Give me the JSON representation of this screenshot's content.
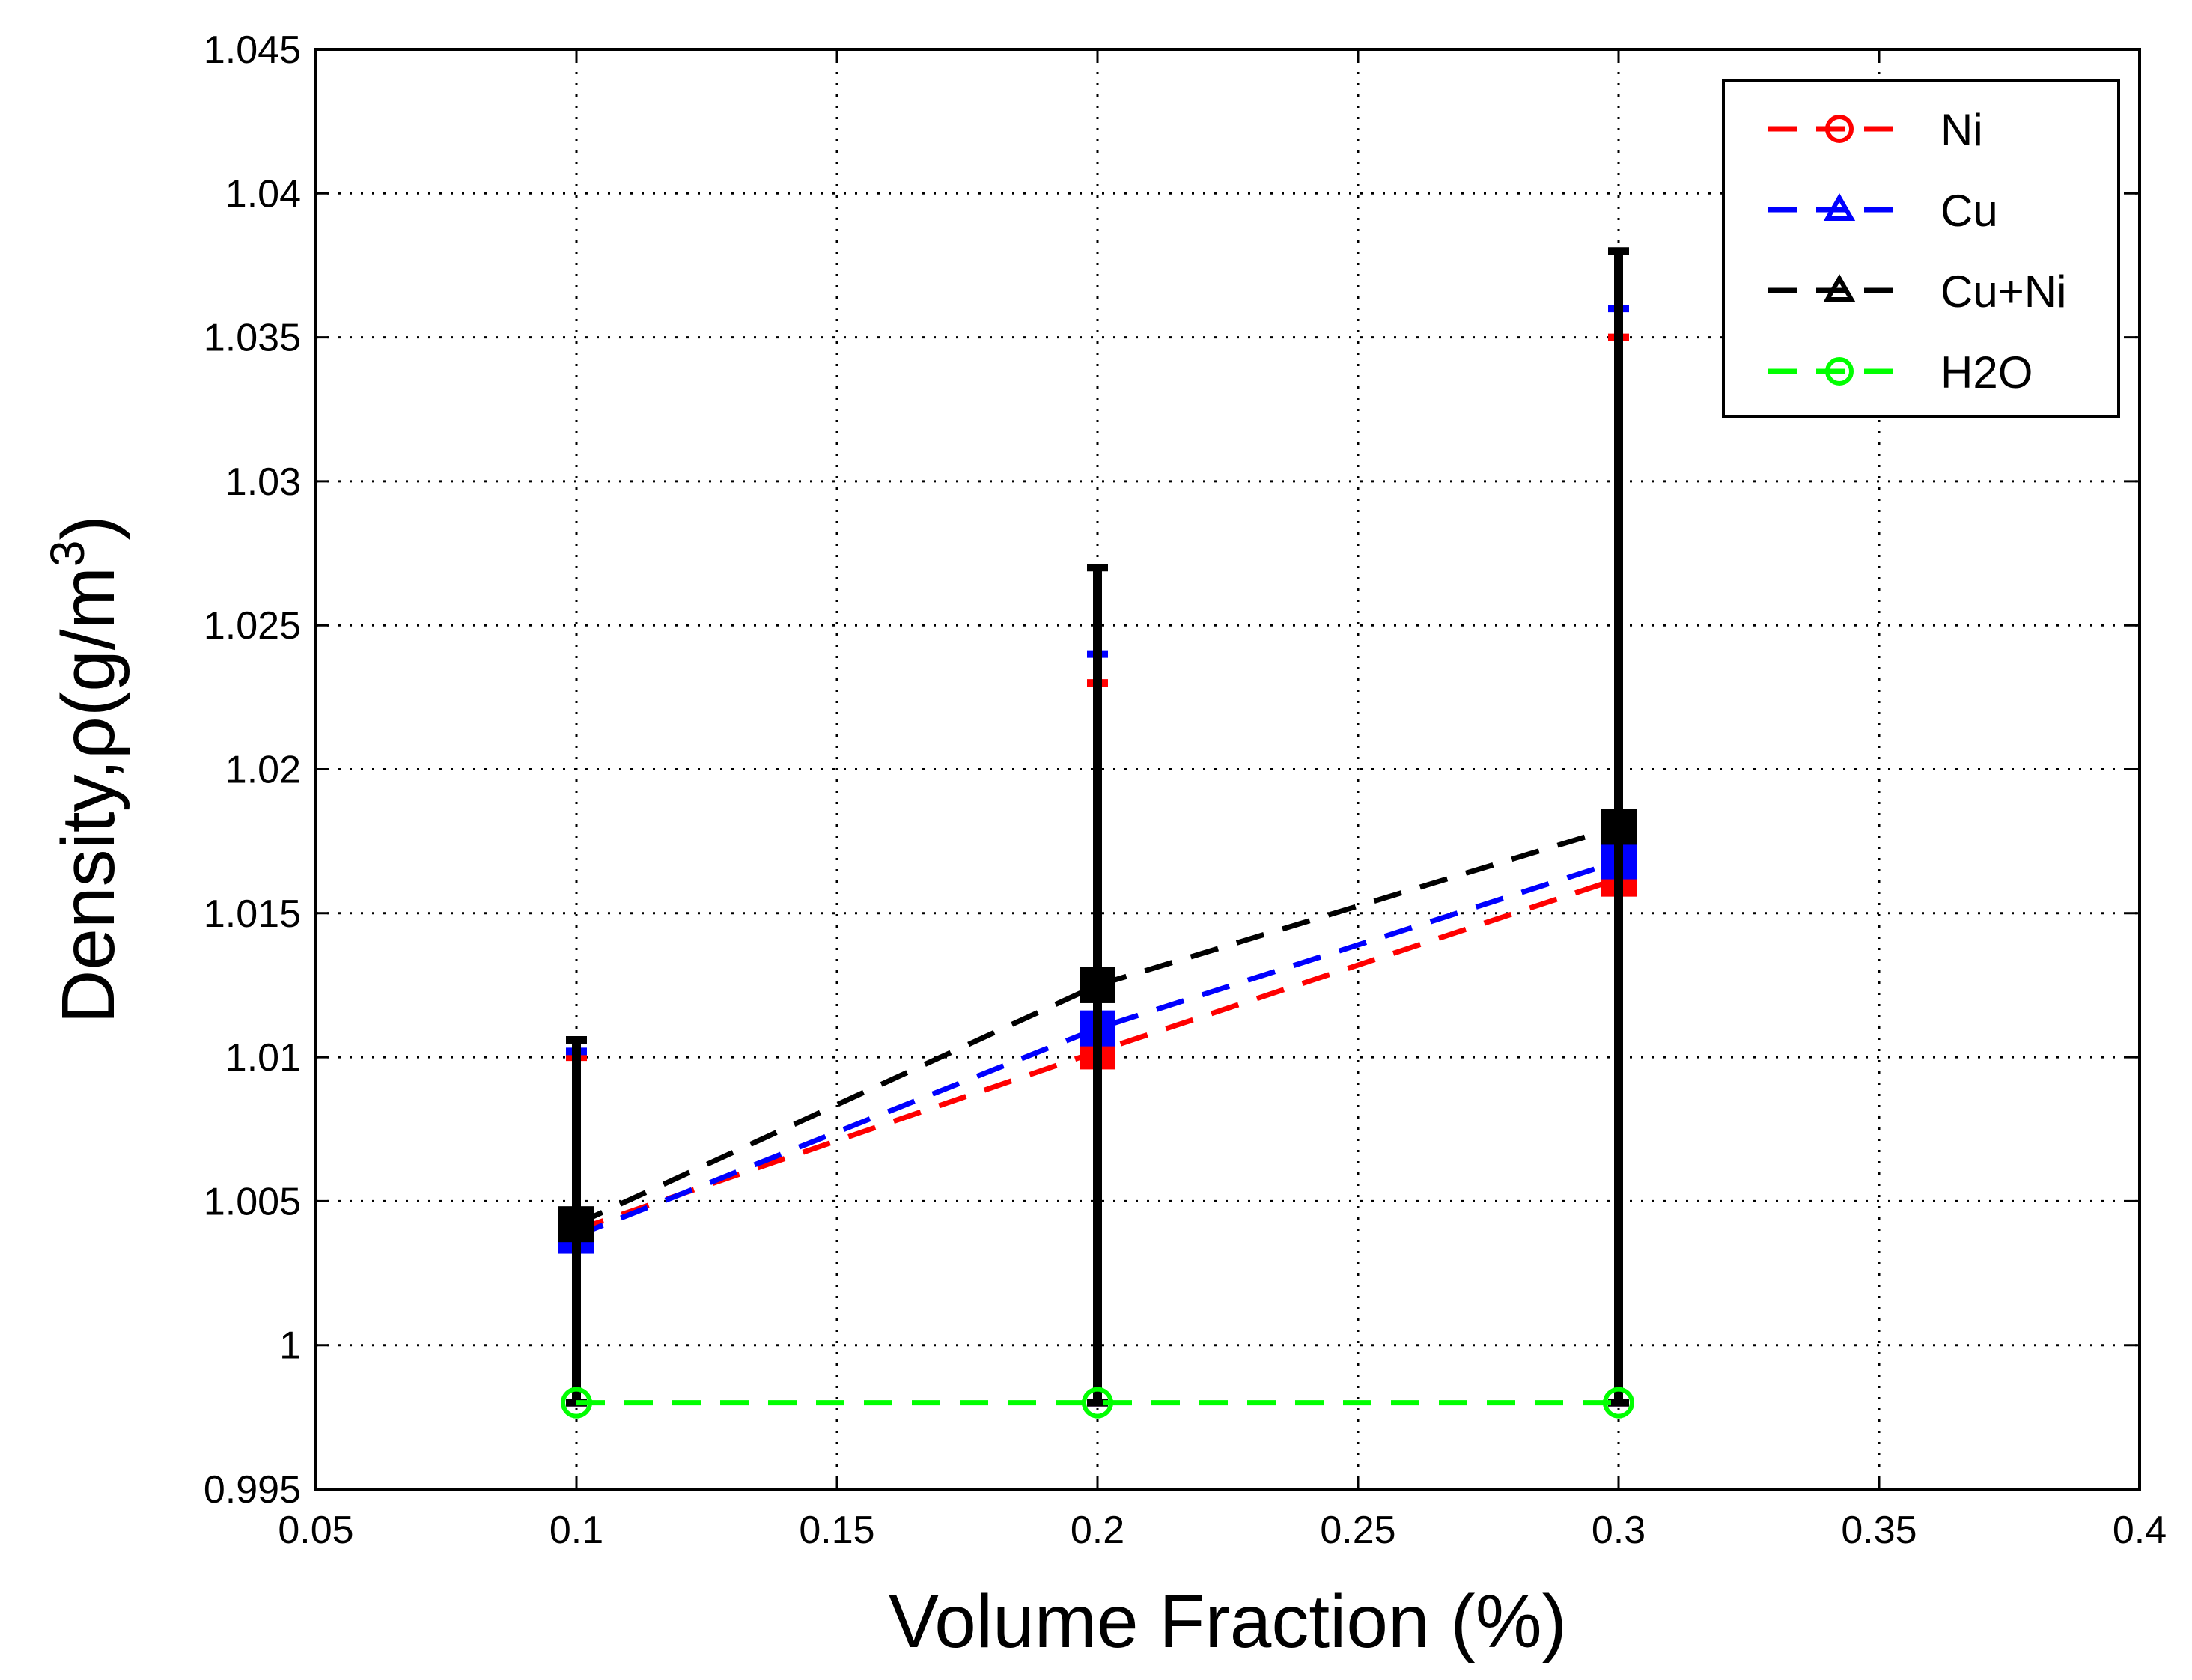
{
  "chart_data": {
    "type": "line",
    "xlabel": "Volume Fraction (%)",
    "ylabel": "Density,ρ(g/m",
    "ylabel_superscript": "3",
    "ylabel_close": ")",
    "xlim": [
      0.05,
      0.4
    ],
    "ylim": [
      0.995,
      1.045
    ],
    "x_ticks": [
      "0.05",
      "0.1",
      "0.15",
      "0.2",
      "0.25",
      "0.3",
      "0.35",
      "0.4"
    ],
    "y_ticks": [
      "0.995",
      "1",
      "1.005",
      "1.01",
      "1.015",
      "1.02",
      "1.025",
      "1.03",
      "1.035",
      "1.04",
      "1.045"
    ],
    "grid": true,
    "legend_position": "top-right",
    "x": [
      0.1,
      0.2,
      0.3
    ],
    "series": [
      {
        "name": "Ni",
        "color": "#ff0000",
        "marker": "circle",
        "line": "dashed",
        "values": [
          1.004,
          1.0102,
          1.0162
        ],
        "upper": [
          1.01,
          1.023,
          1.035
        ],
        "lower": [
          0.998,
          0.998,
          0.998
        ]
      },
      {
        "name": "Cu",
        "color": "#0000ff",
        "marker": "triangle",
        "line": "dashed",
        "values": [
          1.0038,
          1.011,
          1.0168
        ],
        "upper": [
          1.0102,
          1.024,
          1.036
        ],
        "lower": [
          0.998,
          0.998,
          0.998
        ]
      },
      {
        "name": "Cu+Ni",
        "color": "#000000",
        "marker": "triangle",
        "line": "dashed",
        "values": [
          1.0042,
          1.0125,
          1.018
        ],
        "upper": [
          1.0106,
          1.027,
          1.038
        ],
        "lower": [
          0.998,
          0.998,
          0.998
        ]
      },
      {
        "name": "H2O",
        "color": "#00ff00",
        "marker": "circle",
        "line": "dashed",
        "values": [
          0.998,
          0.998,
          0.998
        ]
      }
    ]
  }
}
